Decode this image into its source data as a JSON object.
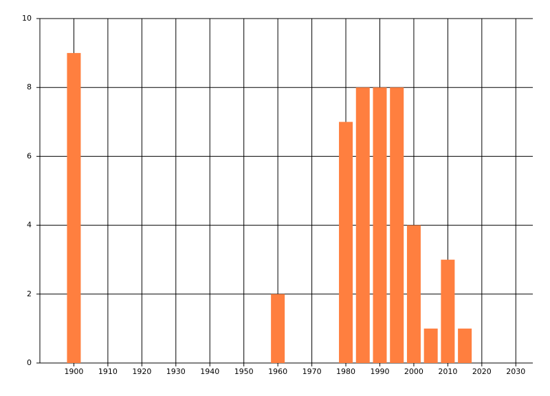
{
  "chart_data": {
    "type": "bar",
    "x": [
      1900,
      1960,
      1980,
      1985,
      1990,
      1995,
      2000,
      2005,
      2010,
      2015
    ],
    "values": [
      9,
      2,
      7,
      8,
      8,
      8,
      4,
      1,
      3,
      1
    ],
    "color": "#ff7f3f",
    "xlim": [
      1890,
      2035
    ],
    "xticks": [
      1900,
      1910,
      1920,
      1930,
      1940,
      1950,
      1960,
      1970,
      1980,
      1990,
      2000,
      2010,
      2020,
      2030
    ],
    "ylim": [
      0,
      10
    ],
    "yticks": [
      0,
      2,
      4,
      6,
      8,
      10
    ],
    "grid": true
  }
}
